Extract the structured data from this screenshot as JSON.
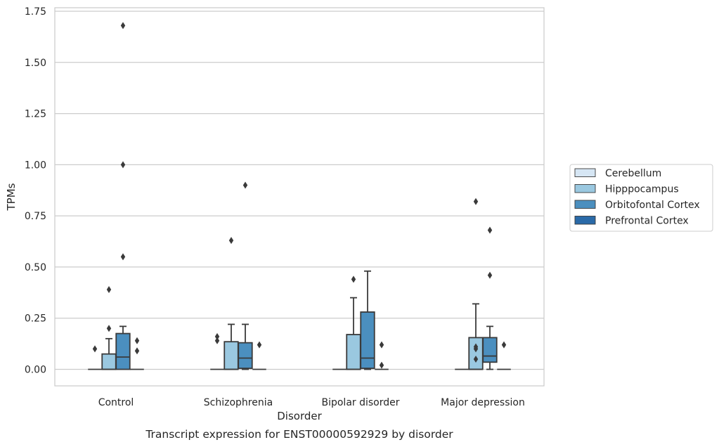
{
  "chart_data": {
    "type": "box",
    "xlabel": "Disorder",
    "ylabel": "TPMs",
    "caption": "Transcript expression for ENST00000592929 by disorder",
    "ylim": [
      -0.08,
      1.77
    ],
    "yticks": [
      "0.00",
      "0.25",
      "0.50",
      "0.75",
      "1.00",
      "1.25",
      "1.50",
      "1.75"
    ],
    "grid": "horizontal",
    "legend_position": "right",
    "categories": [
      "Control",
      "Schizophrenia",
      "Bipolar disorder",
      "Major depression"
    ],
    "series": [
      {
        "name": "Cerebellum",
        "color": "#d6e6f4",
        "boxes": [
          {
            "q1": 0,
            "median": 0,
            "q3": 0,
            "whislo": 0,
            "whishi": 0,
            "fliers": [
              0.1
            ]
          },
          {
            "q1": 0,
            "median": 0,
            "q3": 0,
            "whislo": 0,
            "whishi": 0,
            "fliers": [
              0.14,
              0.16
            ]
          },
          {
            "q1": 0,
            "median": 0,
            "q3": 0,
            "whislo": 0,
            "whishi": 0,
            "fliers": []
          },
          {
            "q1": 0,
            "median": 0,
            "q3": 0,
            "whislo": 0,
            "whishi": 0,
            "fliers": []
          }
        ]
      },
      {
        "name": "Hipppocampus",
        "color": "#9ac8e0",
        "boxes": [
          {
            "q1": 0,
            "median": 0,
            "q3": 0.075,
            "whislo": 0,
            "whishi": 0.15,
            "fliers": [
              0.2,
              0.39
            ]
          },
          {
            "q1": 0,
            "median": 0,
            "q3": 0.135,
            "whislo": 0,
            "whishi": 0.22,
            "fliers": [
              0.63
            ]
          },
          {
            "q1": 0,
            "median": 0,
            "q3": 0.17,
            "whislo": 0,
            "whishi": 0.35,
            "fliers": [
              0.44
            ]
          },
          {
            "q1": 0,
            "median": 0,
            "q3": 0.155,
            "whislo": 0,
            "whishi": 0.32,
            "fliers": [
              0.05,
              0.1,
              0.11,
              0.82
            ]
          }
        ]
      },
      {
        "name": "Orbitofontal Cortex",
        "color": "#4b8fbf",
        "boxes": [
          {
            "q1": 0,
            "median": 0.06,
            "q3": 0.175,
            "whislo": 0,
            "whishi": 0.21,
            "fliers": [
              0.55,
              1.0,
              1.68
            ]
          },
          {
            "q1": 0.005,
            "median": 0.055,
            "q3": 0.13,
            "whislo": 0,
            "whishi": 0.22,
            "fliers": [
              0.9
            ]
          },
          {
            "q1": 0.005,
            "median": 0.055,
            "q3": 0.28,
            "whislo": 0,
            "whishi": 0.48,
            "fliers": []
          },
          {
            "q1": 0.035,
            "median": 0.065,
            "q3": 0.155,
            "whislo": 0,
            "whishi": 0.21,
            "fliers": [
              0.46,
              0.68
            ]
          }
        ]
      },
      {
        "name": "Prefrontal Cortex",
        "color": "#2a6aa8",
        "boxes": [
          {
            "q1": 0,
            "median": 0,
            "q3": 0,
            "whislo": 0,
            "whishi": 0,
            "fliers": [
              0.09,
              0.14
            ]
          },
          {
            "q1": 0,
            "median": 0,
            "q3": 0,
            "whislo": 0,
            "whishi": 0,
            "fliers": [
              0.12
            ]
          },
          {
            "q1": 0,
            "median": 0,
            "q3": 0,
            "whislo": 0,
            "whishi": 0,
            "fliers": [
              0.02,
              0.12
            ]
          },
          {
            "q1": 0,
            "median": 0,
            "q3": 0,
            "whislo": 0,
            "whishi": 0,
            "fliers": [
              0.12
            ]
          }
        ]
      }
    ]
  }
}
